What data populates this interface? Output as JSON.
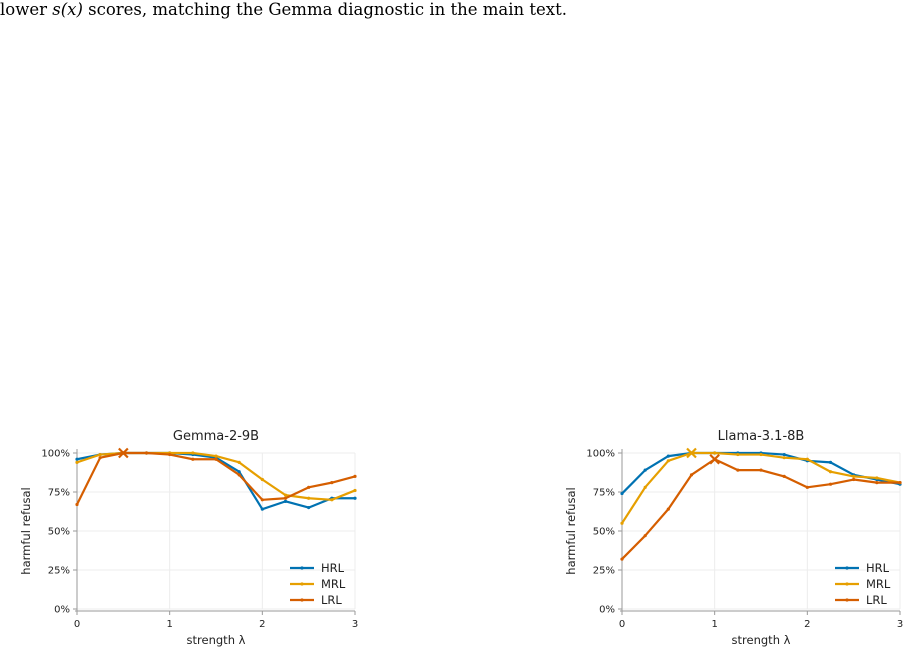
{
  "caption": {
    "prefix": "lower ",
    "math": "s(x)",
    "suffix": " scores, matching the Gemma diagnostic in the main text."
  },
  "colors": {
    "HRL": "#0072B2",
    "MRL": "#E69F00",
    "LRL": "#D55E00"
  },
  "chart_data": [
    {
      "type": "line",
      "title": "Gemma-2-9B",
      "xlabel": "strength λ",
      "ylabel": "harmful refusal",
      "xlim": [
        0,
        3
      ],
      "ylim": [
        0,
        100
      ],
      "xticks": [
        0,
        1,
        2,
        3
      ],
      "xtick_labels": [
        "0",
        "1",
        "2",
        "3"
      ],
      "yticks": [
        0,
        25,
        50,
        75,
        100
      ],
      "ytick_labels": [
        "0%",
        "25%",
        "50%",
        "75%",
        "100%"
      ],
      "grid": true,
      "legend": "lower-right",
      "x": [
        0,
        0.25,
        0.5,
        0.75,
        1,
        1.25,
        1.5,
        1.75,
        2,
        2.25,
        2.5,
        2.75,
        3
      ],
      "series": [
        {
          "name": "HRL",
          "values": [
            96,
            99,
            100,
            100,
            100,
            99,
            97,
            88,
            64,
            69,
            65,
            71,
            71
          ]
        },
        {
          "name": "MRL",
          "values": [
            94,
            99,
            100,
            100,
            100,
            100,
            98,
            94,
            83,
            73,
            71,
            70,
            76
          ]
        },
        {
          "name": "LRL",
          "values": [
            67,
            97,
            100,
            100,
            99,
            96,
            96,
            86,
            70,
            71,
            78,
            81,
            85
          ]
        }
      ],
      "markers": [
        {
          "series": "LRL",
          "x": 0.5,
          "y": 100
        }
      ]
    },
    {
      "type": "line",
      "title": "Llama-3.1-8B",
      "xlabel": "strength λ",
      "ylabel": "harmful refusal",
      "xlim": [
        0,
        3
      ],
      "ylim": [
        0,
        100
      ],
      "xticks": [
        0,
        1,
        2,
        3
      ],
      "xtick_labels": [
        "0",
        "1",
        "2",
        "3"
      ],
      "yticks": [
        0,
        25,
        50,
        75,
        100
      ],
      "ytick_labels": [
        "0%",
        "25%",
        "50%",
        "75%",
        "100%"
      ],
      "grid": true,
      "legend": "lower-right",
      "x": [
        0,
        0.25,
        0.5,
        0.75,
        1,
        1.25,
        1.5,
        1.75,
        2,
        2.25,
        2.5,
        2.75,
        3
      ],
      "series": [
        {
          "name": "HRL",
          "values": [
            74,
            89,
            98,
            100,
            100,
            100,
            100,
            99,
            95,
            94,
            86,
            83,
            80
          ]
        },
        {
          "name": "MRL",
          "values": [
            55,
            78,
            95,
            100,
            100,
            99,
            99,
            97,
            96,
            88,
            85,
            84,
            81
          ]
        },
        {
          "name": "LRL",
          "values": [
            32,
            47,
            64,
            86,
            96,
            89,
            89,
            85,
            78,
            80,
            83,
            81,
            81
          ]
        }
      ],
      "markers": [
        {
          "series": "MRL",
          "x": 0.75,
          "y": 100
        },
        {
          "series": "LRL",
          "x": 1,
          "y": 96
        }
      ]
    }
  ]
}
